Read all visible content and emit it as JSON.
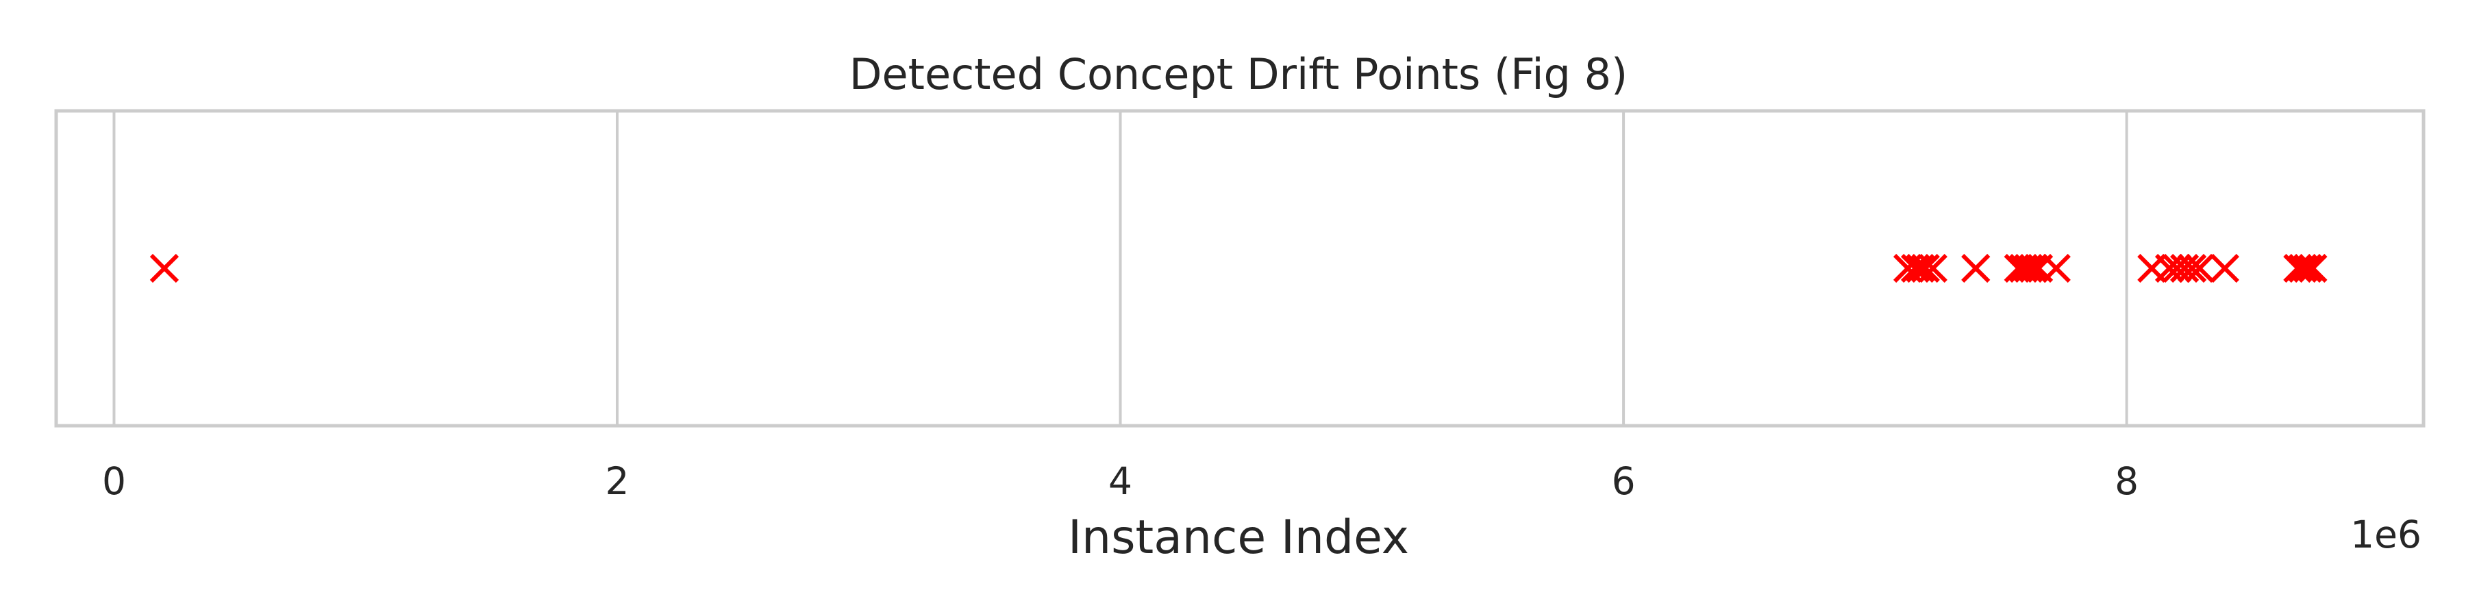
{
  "chart_data": {
    "type": "scatter",
    "title": "Detected Concept Drift Points (Fig 8)",
    "xlabel": "Instance Index",
    "ylabel": "",
    "x_scale_label": "1e6",
    "x_tick_values": [
      0,
      2000000,
      4000000,
      6000000,
      8000000
    ],
    "x_tick_labels": [
      "0",
      "2",
      "4",
      "6",
      "8"
    ],
    "xlim": [
      -230000,
      9180000
    ],
    "ylim": [
      0,
      1
    ],
    "grid": true,
    "legend": "none",
    "marker": "x",
    "marker_color": "#ff0000",
    "series": [
      {
        "x": [
          200000,
          7130000,
          7160000,
          7180000,
          7200000,
          7230000,
          7400000,
          7570000,
          7590000,
          7610000,
          7630000,
          7650000,
          7720000,
          8100000,
          8170000,
          8200000,
          8230000,
          8260000,
          8290000,
          8390000,
          8680000,
          8700000,
          8720000,
          8740000
        ],
        "y": [
          0.5,
          0.5,
          0.5,
          0.5,
          0.5,
          0.5,
          0.5,
          0.5,
          0.5,
          0.5,
          0.5,
          0.5,
          0.5,
          0.5,
          0.5,
          0.5,
          0.5,
          0.5,
          0.5,
          0.5,
          0.5,
          0.5,
          0.5,
          0.5
        ]
      }
    ]
  }
}
